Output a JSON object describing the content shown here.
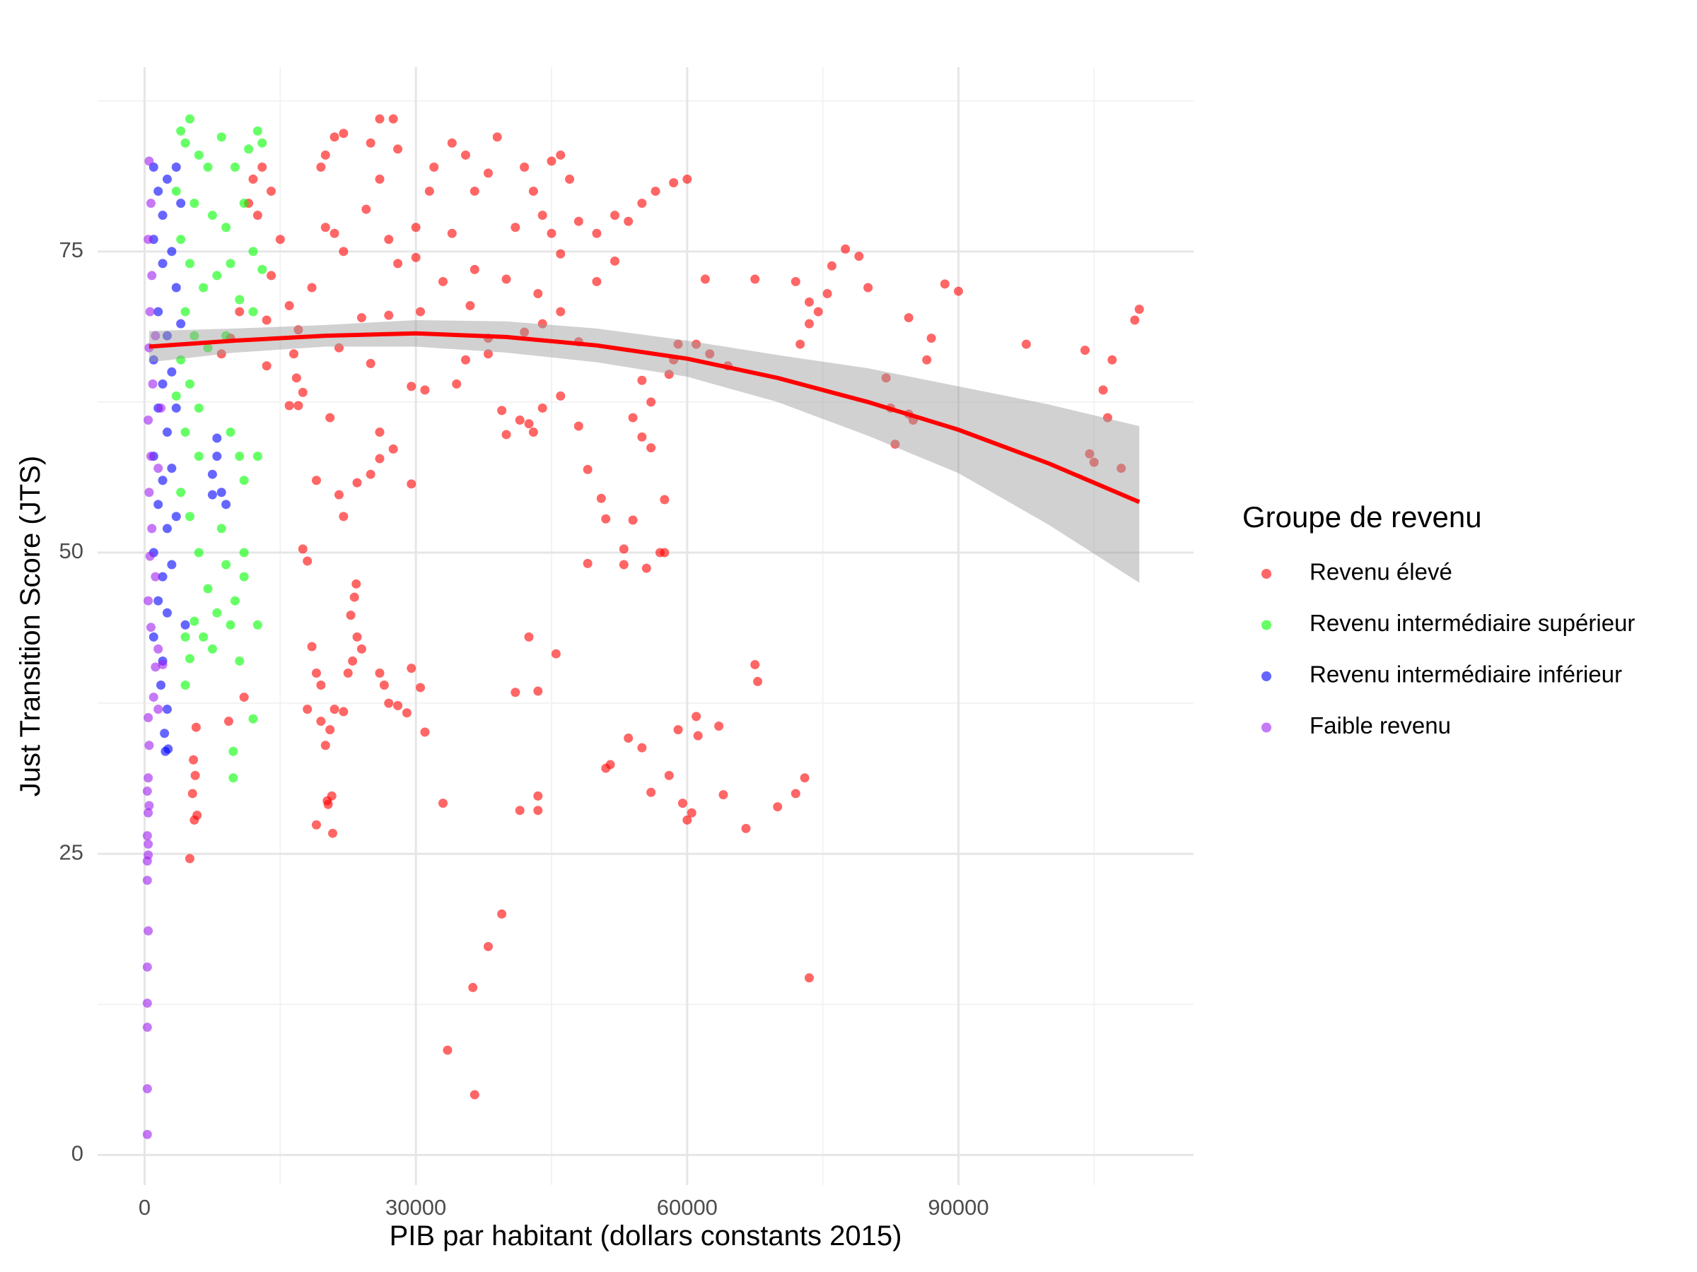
{
  "chart_data": {
    "type": "scatter",
    "xlabel": "PIB par habitant (dollars constants 2015)",
    "ylabel": "Just Transition Score (JTS)",
    "xlim": [
      -5200,
      116000
    ],
    "ylim": [
      -2.5,
      90.3
    ],
    "xticks": [
      0,
      30000,
      60000,
      90000
    ],
    "yticks": [
      0,
      25,
      50,
      75
    ],
    "x_minor_ticks": [
      15000,
      45000,
      75000,
      105000
    ],
    "y_minor_ticks": [
      12.5,
      37.5,
      62.5,
      87.5
    ],
    "grid": true,
    "legend": {
      "title": "Groupe de revenu",
      "position": "right"
    },
    "series": [
      {
        "name": "Revenu élevé",
        "color": "#FF0000",
        "x": [
          5000,
          5500,
          5800,
          5300,
          5600,
          5400,
          5700,
          9300,
          11000,
          18000,
          19500,
          20500,
          21000,
          22000,
          20000,
          19000,
          20200,
          20700,
          20800,
          20300,
          18500,
          19000,
          19500,
          22500,
          23000,
          24000,
          23500,
          22800,
          23200,
          23400,
          26000,
          26500,
          27000,
          28000,
          29000,
          29500,
          30500,
          31000,
          33000,
          33500,
          36500,
          36300,
          38000,
          39500,
          42500,
          41000,
          43500,
          41500,
          43500,
          43500,
          45500,
          51000,
          51500,
          53500,
          55000,
          56000,
          58000,
          59500,
          60000,
          60500,
          59000,
          61000,
          61200,
          63500,
          64000,
          67500,
          67800,
          66500,
          70000,
          72000,
          73000,
          73500,
          17500,
          18000,
          19000,
          21500,
          22000,
          23500,
          25000,
          26000,
          27500,
          29500,
          26000,
          20500,
          17000,
          16000,
          17500,
          16800,
          29500,
          31000,
          34500,
          35500,
          38000,
          39500,
          40000,
          41500,
          42500,
          43000,
          44000,
          46000,
          48000,
          49000,
          50500,
          51000,
          53000,
          53000,
          55500,
          57000,
          57500,
          57500,
          49000,
          54000,
          56000,
          55000,
          54000,
          56000,
          55000,
          58000,
          58500,
          59000,
          61000,
          62500,
          64500,
          72500,
          73500,
          74500,
          76000,
          77500,
          79000,
          80000,
          75500,
          82000,
          82500,
          83000,
          84500,
          85000,
          84500,
          86500,
          87000,
          88500,
          90000,
          97500,
          104000,
          104500,
          105000,
          106000,
          106500,
          107000,
          108000,
          109500,
          110000,
          12000,
          13000,
          14000,
          11500,
          12500,
          15000,
          14000,
          13500,
          16000,
          17000,
          18500,
          20000,
          21000,
          22000,
          19500,
          20000,
          21000,
          22000,
          25000,
          26000,
          27500,
          28000,
          26000,
          24500,
          27000,
          28000,
          30000,
          31500,
          32000,
          34000,
          35500,
          36500,
          38000,
          39000,
          41000,
          42000,
          43000,
          44000,
          45000,
          46000,
          47000,
          48000,
          50000,
          52000,
          53500,
          55000,
          56500,
          58500,
          60000,
          62000,
          67500,
          72000,
          73500,
          30500,
          27000,
          24000,
          33000,
          36000,
          40000,
          43500,
          46000,
          48000,
          50000,
          52000,
          10500,
          9500,
          8500,
          13500,
          16500,
          25000,
          21500,
          38000,
          42000,
          44000,
          46000,
          45000,
          34000,
          36500,
          30000
        ],
        "values": [
          24.6,
          27.8,
          28.2,
          30,
          31.5,
          32.8,
          35.5,
          36,
          38,
          37,
          36,
          35.3,
          37,
          36.8,
          34,
          27.4,
          29.4,
          29.8,
          26.7,
          29.1,
          42.2,
          40,
          39,
          40,
          41,
          42,
          43,
          44.8,
          46.3,
          47.4,
          40,
          39,
          37.5,
          37.3,
          36.7,
          40.4,
          38.8,
          35.1,
          29.2,
          8.7,
          5,
          13.9,
          17.3,
          20,
          43,
          38.4,
          38.5,
          28.6,
          28.6,
          29.8,
          41.6,
          32.1,
          32.4,
          34.6,
          33.8,
          30.1,
          31.5,
          29.2,
          27.8,
          28.4,
          35.3,
          36.4,
          34.8,
          35.6,
          29.9,
          40.7,
          39.3,
          27.1,
          28.9,
          30,
          31.3,
          14.7,
          50.3,
          49.3,
          56,
          54.8,
          53,
          55.8,
          56.5,
          57.8,
          58.6,
          55.7,
          60,
          61.2,
          62.2,
          62.2,
          63.3,
          64.5,
          63.8,
          63.5,
          64,
          66,
          66.5,
          61.8,
          59.8,
          61,
          60.7,
          60,
          62,
          63,
          60.5,
          56.9,
          54.5,
          52.8,
          50.3,
          49,
          48.7,
          50,
          50,
          54.4,
          49.1,
          52.7,
          58.7,
          59.6,
          61.2,
          62.5,
          64.3,
          64.8,
          66,
          67.3,
          67.3,
          66.5,
          65.5,
          67.3,
          69,
          70,
          73.8,
          75.2,
          74.6,
          72,
          71.5,
          64.5,
          62,
          59,
          61.5,
          61,
          69.5,
          66,
          67.8,
          72.3,
          71.7,
          67.3,
          66.8,
          58.2,
          57.5,
          63.5,
          61.2,
          66,
          57,
          69.3,
          70.2,
          81,
          82,
          80,
          79,
          78,
          76,
          73,
          69.3,
          70.5,
          68.5,
          72,
          77,
          76.5,
          75,
          82,
          83,
          84.5,
          84.8,
          84,
          86,
          86,
          83.5,
          81,
          78.5,
          76,
          74,
          77,
          80,
          82,
          84,
          83,
          80,
          81.5,
          84.5,
          77,
          82,
          80,
          78,
          82.5,
          83,
          81,
          77.5,
          76.5,
          78,
          77.5,
          79,
          80,
          80.7,
          81,
          72.7,
          72.7,
          72.5,
          70.8,
          70,
          69.7,
          69.5,
          72.5,
          70.5,
          72.7,
          71.5,
          70,
          67.5,
          72.5,
          74.2,
          70,
          67.8,
          66.5,
          65.5,
          66.5,
          65.7,
          67,
          67.8,
          68.3,
          69,
          74.8,
          76.5,
          76.5,
          73.5,
          74.5
        ]
      },
      {
        "name": "Revenu intermédiaire supérieur",
        "color": "#00FF00",
        "x": [
          4000,
          5000,
          4500,
          6000,
          7000,
          8500,
          10000,
          11500,
          12500,
          13000,
          3500,
          5500,
          7500,
          9000,
          11000,
          12000,
          13000,
          4000,
          5000,
          6500,
          8000,
          9500,
          10500,
          12000,
          4500,
          5500,
          7000,
          9000,
          4000,
          5000,
          6000,
          3500,
          4500,
          6000,
          9500,
          10500,
          12500,
          11000,
          4000,
          5000,
          8500,
          9000,
          11000,
          6000,
          7000,
          8000,
          9500,
          5500,
          6500,
          4500,
          12500,
          10500,
          5000,
          4500,
          12000,
          9800,
          9800,
          11000,
          10000,
          7500
        ],
        "values": [
          85,
          86,
          84,
          83,
          82,
          84.5,
          82,
          83.5,
          85,
          84,
          80,
          79,
          78,
          77,
          79,
          75,
          73.5,
          76,
          74,
          72,
          73,
          74,
          71,
          70,
          70,
          68,
          67,
          68,
          66,
          64,
          62,
          63,
          60,
          58,
          60,
          58,
          58,
          56,
          55,
          53,
          52,
          49,
          50,
          50,
          47,
          45,
          44,
          44.3,
          43,
          43,
          44,
          41,
          41.2,
          39,
          36.2,
          33.5,
          31.3,
          48,
          46,
          42
        ]
      },
      {
        "name": "Revenu intermédiaire inférieur",
        "color": "#0000FF",
        "x": [
          1000,
          1500,
          2000,
          2500,
          3500,
          4000,
          1000,
          2000,
          3000,
          3500,
          1500,
          2500,
          4000,
          1000,
          2000,
          3000,
          1500,
          2500,
          3500,
          1000,
          2000,
          3000,
          1500,
          2500,
          3500,
          1000,
          2000,
          3000,
          1500,
          2500,
          1000,
          2000,
          2500,
          2200,
          2300,
          2600,
          8000,
          7500,
          8500,
          9000,
          7500,
          8000,
          4500,
          1800
        ],
        "values": [
          82,
          80,
          78,
          81,
          82,
          79,
          76,
          74,
          75,
          72,
          70,
          68,
          69,
          66,
          64,
          65,
          62,
          60,
          62,
          58,
          56,
          57,
          54,
          52,
          53,
          50,
          48,
          49,
          46,
          45,
          43,
          41,
          37,
          35,
          33.5,
          33.7,
          59.5,
          56.5,
          55,
          54,
          54.8,
          58,
          44,
          39
        ]
      },
      {
        "name": "Faible revenu",
        "color": "#A020F0",
        "x": [
          500,
          700,
          400,
          800,
          600,
          500,
          900,
          400,
          700,
          500,
          800,
          600,
          1200,
          400,
          700,
          1500,
          1200,
          2000,
          1000,
          1500,
          400,
          500,
          400,
          300,
          500,
          400,
          300,
          400,
          400,
          300,
          300,
          400,
          300,
          300,
          300,
          300,
          300,
          1500,
          1800,
          1200
        ],
        "values": [
          82.5,
          79,
          76,
          73,
          70,
          67,
          64,
          61,
          58,
          55,
          52,
          49.7,
          48,
          46,
          43.8,
          42,
          40.5,
          40.7,
          38,
          37,
          36.3,
          34,
          31.3,
          30.2,
          29,
          28.4,
          26.5,
          25.8,
          24.9,
          24.4,
          22.8,
          18.6,
          15.6,
          12.6,
          10.6,
          5.5,
          1.7,
          57,
          62,
          68
        ]
      }
    ],
    "fit": {
      "color": "#FF0000",
      "band_color": "#999999",
      "x": [
        500,
        10000,
        20000,
        30000,
        40000,
        50000,
        60000,
        70000,
        80000,
        90000,
        100000,
        110000
      ],
      "y": [
        67.1,
        67.6,
        68.0,
        68.2,
        67.9,
        67.2,
        66.1,
        64.5,
        62.5,
        60.2,
        57.4,
        54.2
      ],
      "lower": [
        65.8,
        66.6,
        67.1,
        67.1,
        66.6,
        65.8,
        64.6,
        62.5,
        59.7,
        56.6,
        52.3,
        47.5
      ],
      "upper": [
        68.4,
        68.6,
        68.9,
        69.3,
        69.2,
        68.6,
        67.6,
        66.4,
        65.3,
        63.8,
        62.3,
        60.5
      ]
    }
  }
}
